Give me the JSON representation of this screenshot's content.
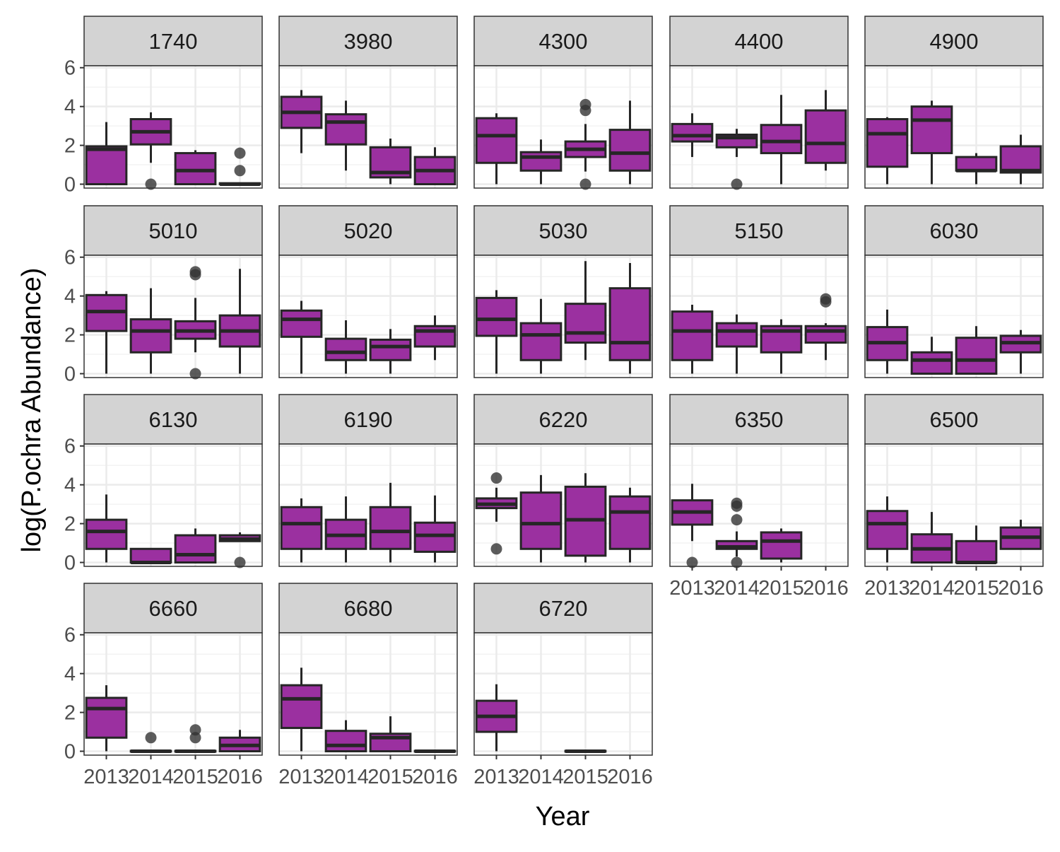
{
  "chart_data": {
    "type": "boxplot",
    "facet_layout": "wrap",
    "xlabel": "Year",
    "ylabel": "log(P.ochra Abundance)",
    "categories": [
      "2013",
      "2014",
      "2015",
      "2016"
    ],
    "y_ticks": [
      0,
      2,
      4,
      6
    ],
    "ylim": [
      -0.2,
      6.1
    ],
    "grid": true,
    "colors": {
      "box_fill": "#9b30a0",
      "box_stroke": "#262626",
      "outlier": "#333333",
      "strip_fill": "#d3d3d3",
      "grid_major": "#ebebeb",
      "grid_minor": "#f3f3f3",
      "panel_border": "#333333"
    },
    "panels": [
      {
        "label": "1740",
        "boxes": [
          {
            "category": "2013",
            "lower": 0,
            "q1": 0,
            "median": 1.8,
            "q3": 1.95,
            "upper": 3.2,
            "outliers": []
          },
          {
            "category": "2014",
            "lower": 1.1,
            "q1": 2.05,
            "median": 2.7,
            "q3": 3.35,
            "upper": 3.7,
            "outliers": [
              0
            ]
          },
          {
            "category": "2015",
            "lower": 0,
            "q1": 0,
            "median": 0.7,
            "q3": 1.6,
            "upper": 1.75,
            "outliers": []
          },
          {
            "category": "2016",
            "lower": 0,
            "q1": 0,
            "median": 0,
            "q3": 0.05,
            "upper": 0.05,
            "outliers": [
              0.7,
              1.6
            ]
          }
        ]
      },
      {
        "label": "3980",
        "boxes": [
          {
            "category": "2013",
            "lower": 1.6,
            "q1": 2.9,
            "median": 3.7,
            "q3": 4.5,
            "upper": 4.85,
            "outliers": []
          },
          {
            "category": "2014",
            "lower": 0.7,
            "q1": 2.05,
            "median": 3.2,
            "q3": 3.6,
            "upper": 4.3,
            "outliers": []
          },
          {
            "category": "2015",
            "lower": 0,
            "q1": 0.35,
            "median": 0.6,
            "q3": 1.9,
            "upper": 2.35,
            "outliers": []
          },
          {
            "category": "2016",
            "lower": 0,
            "q1": 0,
            "median": 0.7,
            "q3": 1.4,
            "upper": 1.9,
            "outliers": []
          }
        ]
      },
      {
        "label": "4300",
        "boxes": [
          {
            "category": "2013",
            "lower": 0,
            "q1": 1.1,
            "median": 2.5,
            "q3": 3.4,
            "upper": 3.65,
            "outliers": []
          },
          {
            "category": "2014",
            "lower": 0,
            "q1": 0.7,
            "median": 1.4,
            "q3": 1.65,
            "upper": 2.3,
            "outliers": []
          },
          {
            "category": "2015",
            "lower": 0.65,
            "q1": 1.4,
            "median": 1.8,
            "q3": 2.2,
            "upper": 3.1,
            "outliers": [
              0,
              3.8,
              4.1
            ]
          },
          {
            "category": "2016",
            "lower": 0,
            "q1": 0.7,
            "median": 1.6,
            "q3": 2.8,
            "upper": 4.3,
            "outliers": []
          }
        ]
      },
      {
        "label": "4400",
        "boxes": [
          {
            "category": "2013",
            "lower": 1.4,
            "q1": 2.2,
            "median": 2.5,
            "q3": 3.1,
            "upper": 3.65,
            "outliers": []
          },
          {
            "category": "2014",
            "lower": 1.4,
            "q1": 1.9,
            "median": 2.4,
            "q3": 2.55,
            "upper": 2.85,
            "outliers": [
              0
            ]
          },
          {
            "category": "2015",
            "lower": 0,
            "q1": 1.6,
            "median": 2.2,
            "q3": 3.05,
            "upper": 4.6,
            "outliers": []
          },
          {
            "category": "2016",
            "lower": 0.7,
            "q1": 1.1,
            "median": 2.1,
            "q3": 3.8,
            "upper": 4.85,
            "outliers": []
          }
        ]
      },
      {
        "label": "4900",
        "boxes": [
          {
            "category": "2013",
            "lower": 0,
            "q1": 0.9,
            "median": 2.6,
            "q3": 3.35,
            "upper": 3.45,
            "outliers": []
          },
          {
            "category": "2014",
            "lower": 0,
            "q1": 1.6,
            "median": 3.3,
            "q3": 4.0,
            "upper": 4.3,
            "outliers": []
          },
          {
            "category": "2015",
            "lower": 0,
            "q1": 0.7,
            "median": 0.7,
            "q3": 1.4,
            "upper": 1.6,
            "outliers": []
          },
          {
            "category": "2016",
            "lower": 0,
            "q1": 0.6,
            "median": 0.7,
            "q3": 1.95,
            "upper": 2.55,
            "outliers": []
          }
        ]
      },
      {
        "label": "5010",
        "boxes": [
          {
            "category": "2013",
            "lower": 0,
            "q1": 2.2,
            "median": 3.2,
            "q3": 4.05,
            "upper": 4.25,
            "outliers": []
          },
          {
            "category": "2014",
            "lower": 0,
            "q1": 1.1,
            "median": 2.2,
            "q3": 2.8,
            "upper": 4.4,
            "outliers": []
          },
          {
            "category": "2015",
            "lower": 1.1,
            "q1": 1.8,
            "median": 2.2,
            "q3": 2.7,
            "upper": 3.9,
            "outliers": [
              0,
              5.1,
              5.25
            ]
          },
          {
            "category": "2016",
            "lower": 0,
            "q1": 1.4,
            "median": 2.2,
            "q3": 3.0,
            "upper": 5.4,
            "outliers": []
          }
        ]
      },
      {
        "label": "5020",
        "boxes": [
          {
            "category": "2013",
            "lower": 0,
            "q1": 1.9,
            "median": 2.8,
            "q3": 3.25,
            "upper": 3.75,
            "outliers": []
          },
          {
            "category": "2014",
            "lower": 0,
            "q1": 0.7,
            "median": 1.1,
            "q3": 1.8,
            "upper": 2.75,
            "outliers": []
          },
          {
            "category": "2015",
            "lower": 0,
            "q1": 0.7,
            "median": 1.4,
            "q3": 1.75,
            "upper": 2.3,
            "outliers": []
          },
          {
            "category": "2016",
            "lower": 0.7,
            "q1": 1.4,
            "median": 2.2,
            "q3": 2.45,
            "upper": 3.0,
            "outliers": []
          }
        ]
      },
      {
        "label": "5030",
        "boxes": [
          {
            "category": "2013",
            "lower": 0,
            "q1": 1.95,
            "median": 2.8,
            "q3": 3.9,
            "upper": 4.3,
            "outliers": []
          },
          {
            "category": "2014",
            "lower": 0,
            "q1": 0.7,
            "median": 2.0,
            "q3": 2.6,
            "upper": 3.85,
            "outliers": []
          },
          {
            "category": "2015",
            "lower": 0.7,
            "q1": 1.6,
            "median": 2.1,
            "q3": 3.6,
            "upper": 5.8,
            "outliers": []
          },
          {
            "category": "2016",
            "lower": 0,
            "q1": 0.7,
            "median": 1.6,
            "q3": 4.4,
            "upper": 5.7,
            "outliers": []
          }
        ]
      },
      {
        "label": "5150",
        "boxes": [
          {
            "category": "2013",
            "lower": 0,
            "q1": 0.7,
            "median": 2.2,
            "q3": 3.2,
            "upper": 3.55,
            "outliers": []
          },
          {
            "category": "2014",
            "lower": 0,
            "q1": 1.4,
            "median": 2.2,
            "q3": 2.6,
            "upper": 3.05,
            "outliers": []
          },
          {
            "category": "2015",
            "lower": 0,
            "q1": 1.1,
            "median": 2.2,
            "q3": 2.45,
            "upper": 2.8,
            "outliers": []
          },
          {
            "category": "2016",
            "lower": 0.7,
            "q1": 1.6,
            "median": 2.2,
            "q3": 2.45,
            "upper": 2.6,
            "outliers": [
              3.7,
              3.85
            ]
          }
        ]
      },
      {
        "label": "6030",
        "boxes": [
          {
            "category": "2013",
            "lower": 0,
            "q1": 0.7,
            "median": 1.6,
            "q3": 2.4,
            "upper": 3.3,
            "outliers": []
          },
          {
            "category": "2014",
            "lower": 0,
            "q1": 0,
            "median": 0.7,
            "q3": 1.1,
            "upper": 1.9,
            "outliers": []
          },
          {
            "category": "2015",
            "lower": 0,
            "q1": 0,
            "median": 0.7,
            "q3": 1.85,
            "upper": 2.45,
            "outliers": []
          },
          {
            "category": "2016",
            "lower": 0,
            "q1": 1.1,
            "median": 1.6,
            "q3": 1.95,
            "upper": 2.25,
            "outliers": []
          }
        ]
      },
      {
        "label": "6130",
        "boxes": [
          {
            "category": "2013",
            "lower": 0,
            "q1": 0.7,
            "median": 1.6,
            "q3": 2.2,
            "upper": 3.5,
            "outliers": []
          },
          {
            "category": "2014",
            "lower": 0,
            "q1": 0,
            "median": 0,
            "q3": 0.7,
            "upper": 0.7,
            "outliers": []
          },
          {
            "category": "2015",
            "lower": 0,
            "q1": 0,
            "median": 0.4,
            "q3": 1.4,
            "upper": 1.75,
            "outliers": []
          },
          {
            "category": "2016",
            "lower": 1.1,
            "q1": 1.1,
            "median": 1.2,
            "q3": 1.4,
            "upper": 1.55,
            "outliers": [
              0
            ]
          }
        ]
      },
      {
        "label": "6190",
        "boxes": [
          {
            "category": "2013",
            "lower": 0,
            "q1": 0.7,
            "median": 2.0,
            "q3": 2.85,
            "upper": 3.3,
            "outliers": []
          },
          {
            "category": "2014",
            "lower": 0,
            "q1": 0.7,
            "median": 1.4,
            "q3": 2.2,
            "upper": 3.4,
            "outliers": []
          },
          {
            "category": "2015",
            "lower": 0,
            "q1": 0.7,
            "median": 1.6,
            "q3": 2.85,
            "upper": 4.1,
            "outliers": []
          },
          {
            "category": "2016",
            "lower": 0,
            "q1": 0.55,
            "median": 1.4,
            "q3": 2.05,
            "upper": 3.45,
            "outliers": []
          }
        ]
      },
      {
        "label": "6220",
        "boxes": [
          {
            "category": "2013",
            "lower": 2.1,
            "q1": 2.8,
            "median": 3.0,
            "q3": 3.3,
            "upper": 3.85,
            "outliers": [
              0.7,
              4.35
            ]
          },
          {
            "category": "2014",
            "lower": 0,
            "q1": 0.7,
            "median": 2.0,
            "q3": 3.6,
            "upper": 4.5,
            "outliers": []
          },
          {
            "category": "2015",
            "lower": 0,
            "q1": 0.35,
            "median": 2.2,
            "q3": 3.9,
            "upper": 4.6,
            "outliers": []
          },
          {
            "category": "2016",
            "lower": 0,
            "q1": 0.7,
            "median": 2.6,
            "q3": 3.4,
            "upper": 3.85,
            "outliers": []
          }
        ]
      },
      {
        "label": "6350",
        "boxes": [
          {
            "category": "2013",
            "lower": 1.1,
            "q1": 1.95,
            "median": 2.6,
            "q3": 3.2,
            "upper": 4.05,
            "outliers": [
              0
            ]
          },
          {
            "category": "2014",
            "lower": 0.3,
            "q1": 0.7,
            "median": 0.8,
            "q3": 1.1,
            "upper": 1.6,
            "outliers": [
              0,
              2.2,
              2.9,
              3.05
            ]
          },
          {
            "category": "2015",
            "lower": 0,
            "q1": 0.2,
            "median": 1.1,
            "q3": 1.55,
            "upper": 1.75,
            "outliers": []
          }
        ]
      },
      {
        "label": "6500",
        "boxes": [
          {
            "category": "2013",
            "lower": 0,
            "q1": 0.7,
            "median": 2.0,
            "q3": 2.65,
            "upper": 3.4,
            "outliers": []
          },
          {
            "category": "2014",
            "lower": 0,
            "q1": 0,
            "median": 0.7,
            "q3": 1.45,
            "upper": 2.6,
            "outliers": []
          },
          {
            "category": "2015",
            "lower": 0,
            "q1": 0,
            "median": 0,
            "q3": 1.1,
            "upper": 1.9,
            "outliers": []
          },
          {
            "category": "2016",
            "lower": 0.7,
            "q1": 0.7,
            "median": 1.3,
            "q3": 1.8,
            "upper": 2.2,
            "outliers": []
          }
        ]
      },
      {
        "label": "6660",
        "boxes": [
          {
            "category": "2013",
            "lower": 0,
            "q1": 0.7,
            "median": 2.2,
            "q3": 2.75,
            "upper": 3.4,
            "outliers": []
          },
          {
            "category": "2014",
            "lower": 0,
            "q1": 0,
            "median": 0,
            "q3": 0.02,
            "upper": 0.02,
            "outliers": [
              0.7
            ]
          },
          {
            "category": "2015",
            "lower": 0,
            "q1": 0,
            "median": 0,
            "q3": 0.02,
            "upper": 0.02,
            "outliers": [
              0.7,
              1.1
            ]
          },
          {
            "category": "2016",
            "lower": 0,
            "q1": 0,
            "median": 0.3,
            "q3": 0.7,
            "upper": 1.1,
            "outliers": []
          }
        ]
      },
      {
        "label": "6680",
        "boxes": [
          {
            "category": "2013",
            "lower": 0,
            "q1": 1.2,
            "median": 2.7,
            "q3": 3.4,
            "upper": 4.3,
            "outliers": []
          },
          {
            "category": "2014",
            "lower": 0,
            "q1": 0,
            "median": 0.3,
            "q3": 1.05,
            "upper": 1.6,
            "outliers": []
          },
          {
            "category": "2015",
            "lower": 0,
            "q1": 0,
            "median": 0.7,
            "q3": 0.9,
            "upper": 1.8,
            "outliers": []
          },
          {
            "category": "2016",
            "lower": 0,
            "q1": 0,
            "median": 0,
            "q3": 0.02,
            "upper": 0.02,
            "outliers": []
          }
        ]
      },
      {
        "label": "6720",
        "boxes": [
          {
            "category": "2013",
            "lower": 0,
            "q1": 1.0,
            "median": 1.8,
            "q3": 2.6,
            "upper": 3.45,
            "outliers": []
          },
          {
            "category": "2015",
            "lower": 0,
            "q1": 0,
            "median": 0,
            "q3": 0.02,
            "upper": 0.02,
            "outliers": []
          }
        ]
      }
    ]
  }
}
